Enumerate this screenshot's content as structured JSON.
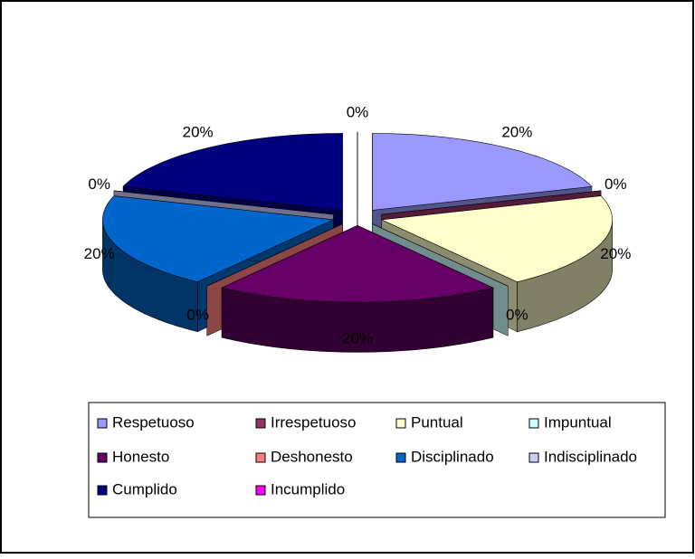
{
  "chart_data": {
    "type": "pie3d",
    "categories": [
      "Respetuoso",
      "Irrespetuoso",
      "Puntual",
      "Impuntual",
      "Honesto",
      "Deshonesto",
      "Disciplinado",
      "Indisciplinado",
      "Cumplido",
      "Incumplido"
    ],
    "values": [
      20,
      0,
      20,
      0,
      20,
      0,
      20,
      0,
      20,
      0
    ],
    "value_labels": [
      "20%",
      "0%",
      "20%",
      "0%",
      "20%",
      "0%",
      "20%",
      "0%",
      "20%",
      "0%"
    ],
    "colors": [
      "#9999ff",
      "#993366",
      "#ffffcc",
      "#ccffff",
      "#660066",
      "#ff8080",
      "#0066cc",
      "#ccccff",
      "#000080",
      "#ff00ff"
    ],
    "legend": "bottom"
  }
}
